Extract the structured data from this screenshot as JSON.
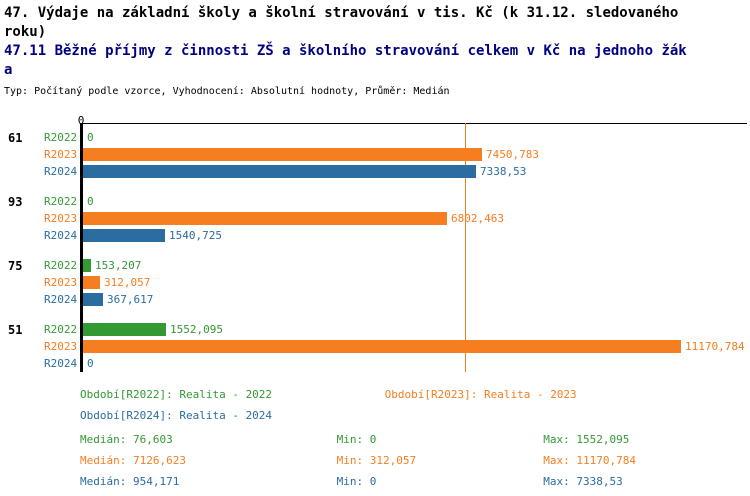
{
  "header": {
    "title_lines": [
      "47. Výdaje na základní školy a školní stravování v tis. Kč (k 31.12. sledovaného",
      "roku)"
    ],
    "subtitle_lines": [
      "47.11 Běžné příjmy z činnosti ZŠ a školního stravování celkem v Kč na jednoho žák",
      "a"
    ],
    "meta": "Typ: Počítaný podle vzorce, Vyhodnocení: Absolutní hodnoty, Průměr: Medián"
  },
  "chart_data": {
    "type": "bar",
    "orientation": "horizontal",
    "axis_zero_label": "0",
    "xlim": [
      0,
      11170.784
    ],
    "grid": false,
    "categories": [
      "61",
      "93",
      "75",
      "51"
    ],
    "series": [
      {
        "name": "R2022",
        "color": "#339933",
        "values": [
          0,
          0,
          153.207,
          1552.095
        ],
        "value_labels": [
          "0",
          "0",
          "153,207",
          "1552,095"
        ]
      },
      {
        "name": "R2023",
        "color": "#f57e20",
        "values": [
          7450.783,
          6802.463,
          312.057,
          11170.784
        ],
        "value_labels": [
          "7450,783",
          "6802,463",
          "312,057",
          "11170,784"
        ]
      },
      {
        "name": "R2024",
        "color": "#2b6ca3",
        "values": [
          7338.53,
          1540.725,
          367.617,
          0
        ],
        "value_labels": [
          "7338,53",
          "1540,725",
          "367,617",
          "0"
        ]
      }
    ],
    "median_line": {
      "series": "R2023",
      "value": 7126.623,
      "color": "#f57e20"
    }
  },
  "legend": [
    {
      "label": "Období[R2022]: Realita - 2022",
      "color": "#339933"
    },
    {
      "label": "Období[R2023]: Realita - 2023",
      "color": "#f57e20"
    },
    {
      "label": "Období[R2024]: Realita - 2024",
      "color": "#2b6ca3"
    }
  ],
  "stats": [
    {
      "median": "Medián: 76,603",
      "min": "Min: 0",
      "max": "Max: 1552,095",
      "color": "#339933"
    },
    {
      "median": "Medián: 7126,623",
      "min": "Min: 312,057",
      "max": "Max: 11170,784",
      "color": "#f57e20"
    },
    {
      "median": "Medián: 954,171",
      "min": "Min: 0",
      "max": "Max: 7338,53",
      "color": "#2b6ca3"
    }
  ]
}
